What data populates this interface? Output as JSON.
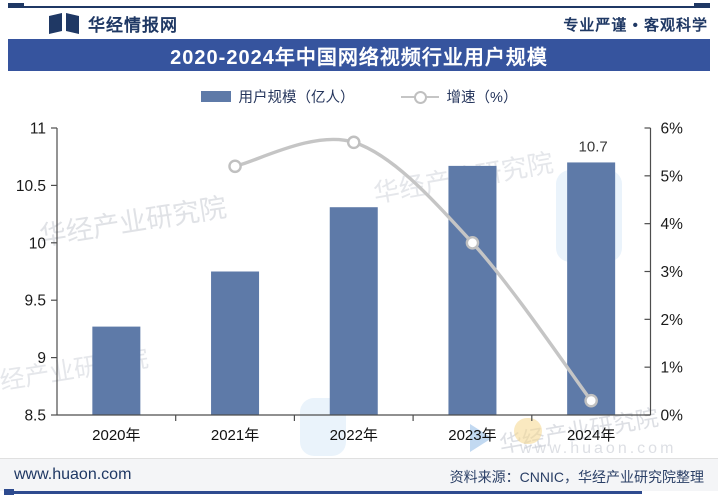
{
  "header": {
    "brand": "华经情报网",
    "slogan": "专业严谨 • 客观科学"
  },
  "banner": {
    "title": "2020-2024年中国网络视频行业用户规模"
  },
  "legend": [
    {
      "label": "用户规模（亿人）",
      "type": "bar"
    },
    {
      "label": "增速（%）",
      "type": "line"
    }
  ],
  "chart_data": {
    "type": "bar+line",
    "title": "2020-2024年中国网络视频行业用户规模",
    "categories": [
      "2020年",
      "2021年",
      "2022年",
      "2023年",
      "2024年"
    ],
    "series": [
      {
        "name": "用户规模（亿人）",
        "type": "bar",
        "axis": "left",
        "color": "#5e7aa8",
        "values": [
          9.27,
          9.75,
          10.31,
          10.67,
          10.7
        ]
      },
      {
        "name": "增速（%）",
        "type": "line",
        "axis": "right",
        "color": "#c5c5c5",
        "values": [
          null,
          5.2,
          5.7,
          3.6,
          0.3
        ]
      }
    ],
    "left_axis": {
      "min": 8.5,
      "max": 11,
      "step": 0.5,
      "ticks": [
        "11",
        "10.5",
        "10",
        "9.5",
        "9",
        "8.5"
      ]
    },
    "right_axis": {
      "min": 0,
      "max": 6,
      "step": 1,
      "ticks": [
        "6%",
        "5%",
        "4%",
        "3%",
        "2%",
        "1%",
        "0%"
      ]
    },
    "data_labels": [
      {
        "category_index": 4,
        "series_index": 0,
        "text": "10.7"
      }
    ],
    "grid": false,
    "legend_position": "top"
  },
  "watermarks": {
    "brand_text": "华经产业研究院",
    "site_text": "www.huaon.com"
  },
  "footer": {
    "site": "www.huaon.com",
    "source": "资料来源：CNNIC，华经产业研究院整理"
  },
  "colors": {
    "banner_bg": "#36549e",
    "brand_navy": "#1f3864",
    "bar": "#5e7aa8",
    "line": "#c5c5c5",
    "accent": "#2e4b8f"
  }
}
